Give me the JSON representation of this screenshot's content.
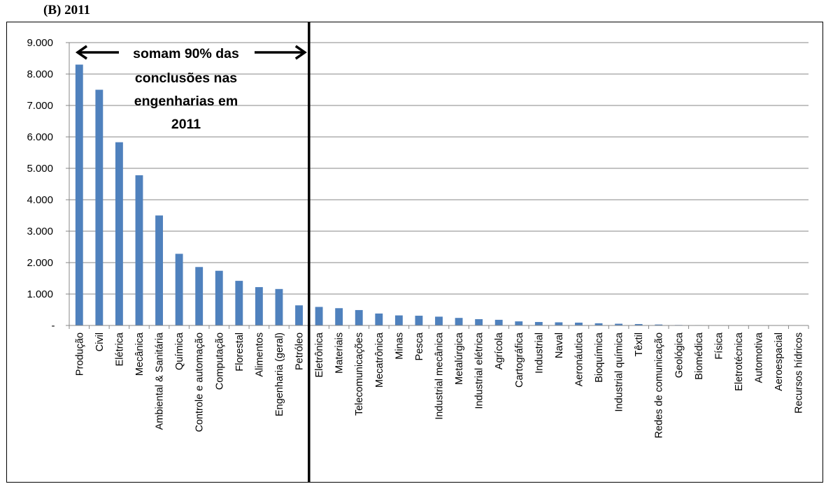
{
  "panel_label": "(B)  2011",
  "chart_data": {
    "type": "bar",
    "title": "",
    "xlabel": "",
    "ylabel": "",
    "ylim": [
      0,
      9000
    ],
    "yticks": [
      {
        "value": 0,
        "label": "-"
      },
      {
        "value": 1000,
        "label": "1.000"
      },
      {
        "value": 2000,
        "label": "2.000"
      },
      {
        "value": 3000,
        "label": "3.000"
      },
      {
        "value": 4000,
        "label": "4.000"
      },
      {
        "value": 5000,
        "label": "5.000"
      },
      {
        "value": 6000,
        "label": "6.000"
      },
      {
        "value": 7000,
        "label": "7.000"
      },
      {
        "value": 8000,
        "label": "8.000"
      },
      {
        "value": 9000,
        "label": "9.000"
      }
    ],
    "grid": true,
    "bar_color": "#4f81bd",
    "categories": [
      "Produção",
      "Civil",
      "Elétrica",
      "Mecânica",
      "Ambiental & Sanitária",
      "Química",
      "Controle e automação",
      "Computação",
      "Florestal",
      "Alimentos",
      "Engenharia (geral)",
      "Petróleo",
      "Eletrônica",
      "Materiais",
      "Telecomunicações",
      "Mecatrônica",
      "Minas",
      "Pesca",
      "Industrial mecânica",
      "Metalúrgica",
      "Industrial elétrica",
      "Agrícola",
      "Cartográfica",
      "Industrial",
      "Naval",
      "Aeronáutica",
      "Bioquímica",
      "Industrial química",
      "Têxtil",
      "Redes de comunicação",
      "Geológica",
      "Biomédica",
      "Física",
      "Eletrotécnica",
      "Automotiva",
      "Aeroespacial",
      "Recursos hídricos"
    ],
    "values": [
      8300,
      7500,
      5830,
      4780,
      3500,
      2280,
      1860,
      1740,
      1420,
      1220,
      1160,
      640,
      590,
      550,
      490,
      380,
      320,
      310,
      280,
      240,
      200,
      180,
      130,
      110,
      100,
      90,
      70,
      55,
      45,
      30,
      15,
      12,
      5,
      3,
      2,
      1,
      1
    ],
    "annotation": {
      "lines": [
        "somam 90% das",
        "conclusões nas",
        "engenharias em",
        "2011"
      ],
      "divider_after_category": "Petróleo"
    }
  }
}
